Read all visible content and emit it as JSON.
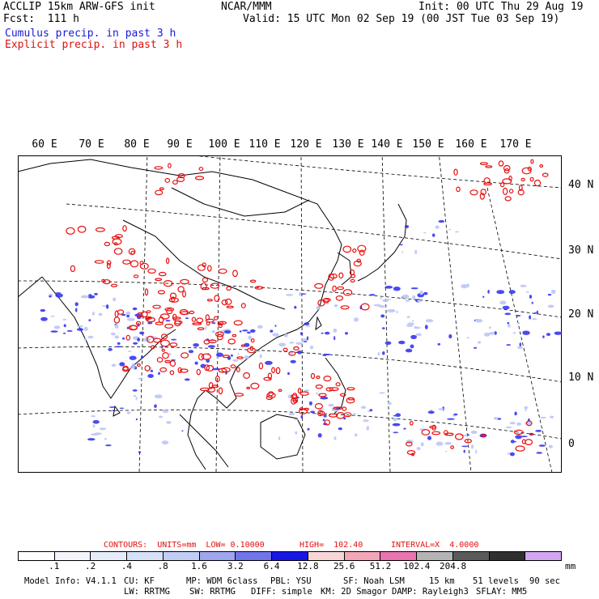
{
  "header": {
    "model": "ACCLIP 15km ARW-GFS init",
    "fcst": "Fcst:  111 h",
    "org": "NCAR/MMM",
    "init": "Init: 00 UTC Thu 29 Aug 19",
    "valid": "Valid: 15 UTC Mon 02 Sep 19 (00 JST Tue 03 Sep 19)",
    "cumulus": "Cumulus precip. in past 3 h",
    "explicit": "Explicit precip. in past 3 h"
  },
  "map": {
    "lon_labels": [
      "60 E",
      "70 E",
      "80 E",
      "90 E",
      "100 E",
      "110 E",
      "120 E",
      "130 E",
      "140 E",
      "150 E",
      "160 E",
      "170 E"
    ],
    "lat_labels": [
      "40 N",
      "30 N",
      "20 N",
      "10 N",
      "0"
    ],
    "colors": {
      "cumulus": "#2b2bf0",
      "explicit": "#e81010",
      "coast": "#000000",
      "grid": "#000000"
    }
  },
  "contours": {
    "label": "CONTOURS:  UNITS=mm  LOW= 0.10000",
    "high": "HIGH=  102.40",
    "interval": "INTERVAL=X  4.0000"
  },
  "scale": {
    "colors": [
      "#ffffff",
      "#f4f4fb",
      "#e6ecf8",
      "#d6e0f6",
      "#c2cdf6",
      "#9ea6ee",
      "#7075e8",
      "#1717e6",
      "#f8d6d6",
      "#f2a6b8",
      "#e874b0",
      "#b4b4b4",
      "#5a5a5a",
      "#303030",
      "#d4a6f0"
    ],
    "ticks": [
      ".1",
      ".2",
      ".4",
      ".8",
      "1.6",
      "3.2",
      "6.4",
      "12.8",
      "25.6",
      "51.2",
      "102.4",
      "204.8"
    ],
    "unit": "mm"
  },
  "model_info": {
    "line1": [
      "Model Info: V4.1.1",
      "CU: KF",
      "MP: WDM 6class",
      "PBL: YSU",
      "SF: Noah LSM",
      "15 km",
      "51 levels",
      "90 sec"
    ],
    "line2": [
      "LW: RRTMG",
      "SW: RRTMG",
      "DIFF: simple",
      "KM: 2D Smagor",
      "DAMP: Rayleigh3",
      "SFLAY: MM5"
    ]
  }
}
